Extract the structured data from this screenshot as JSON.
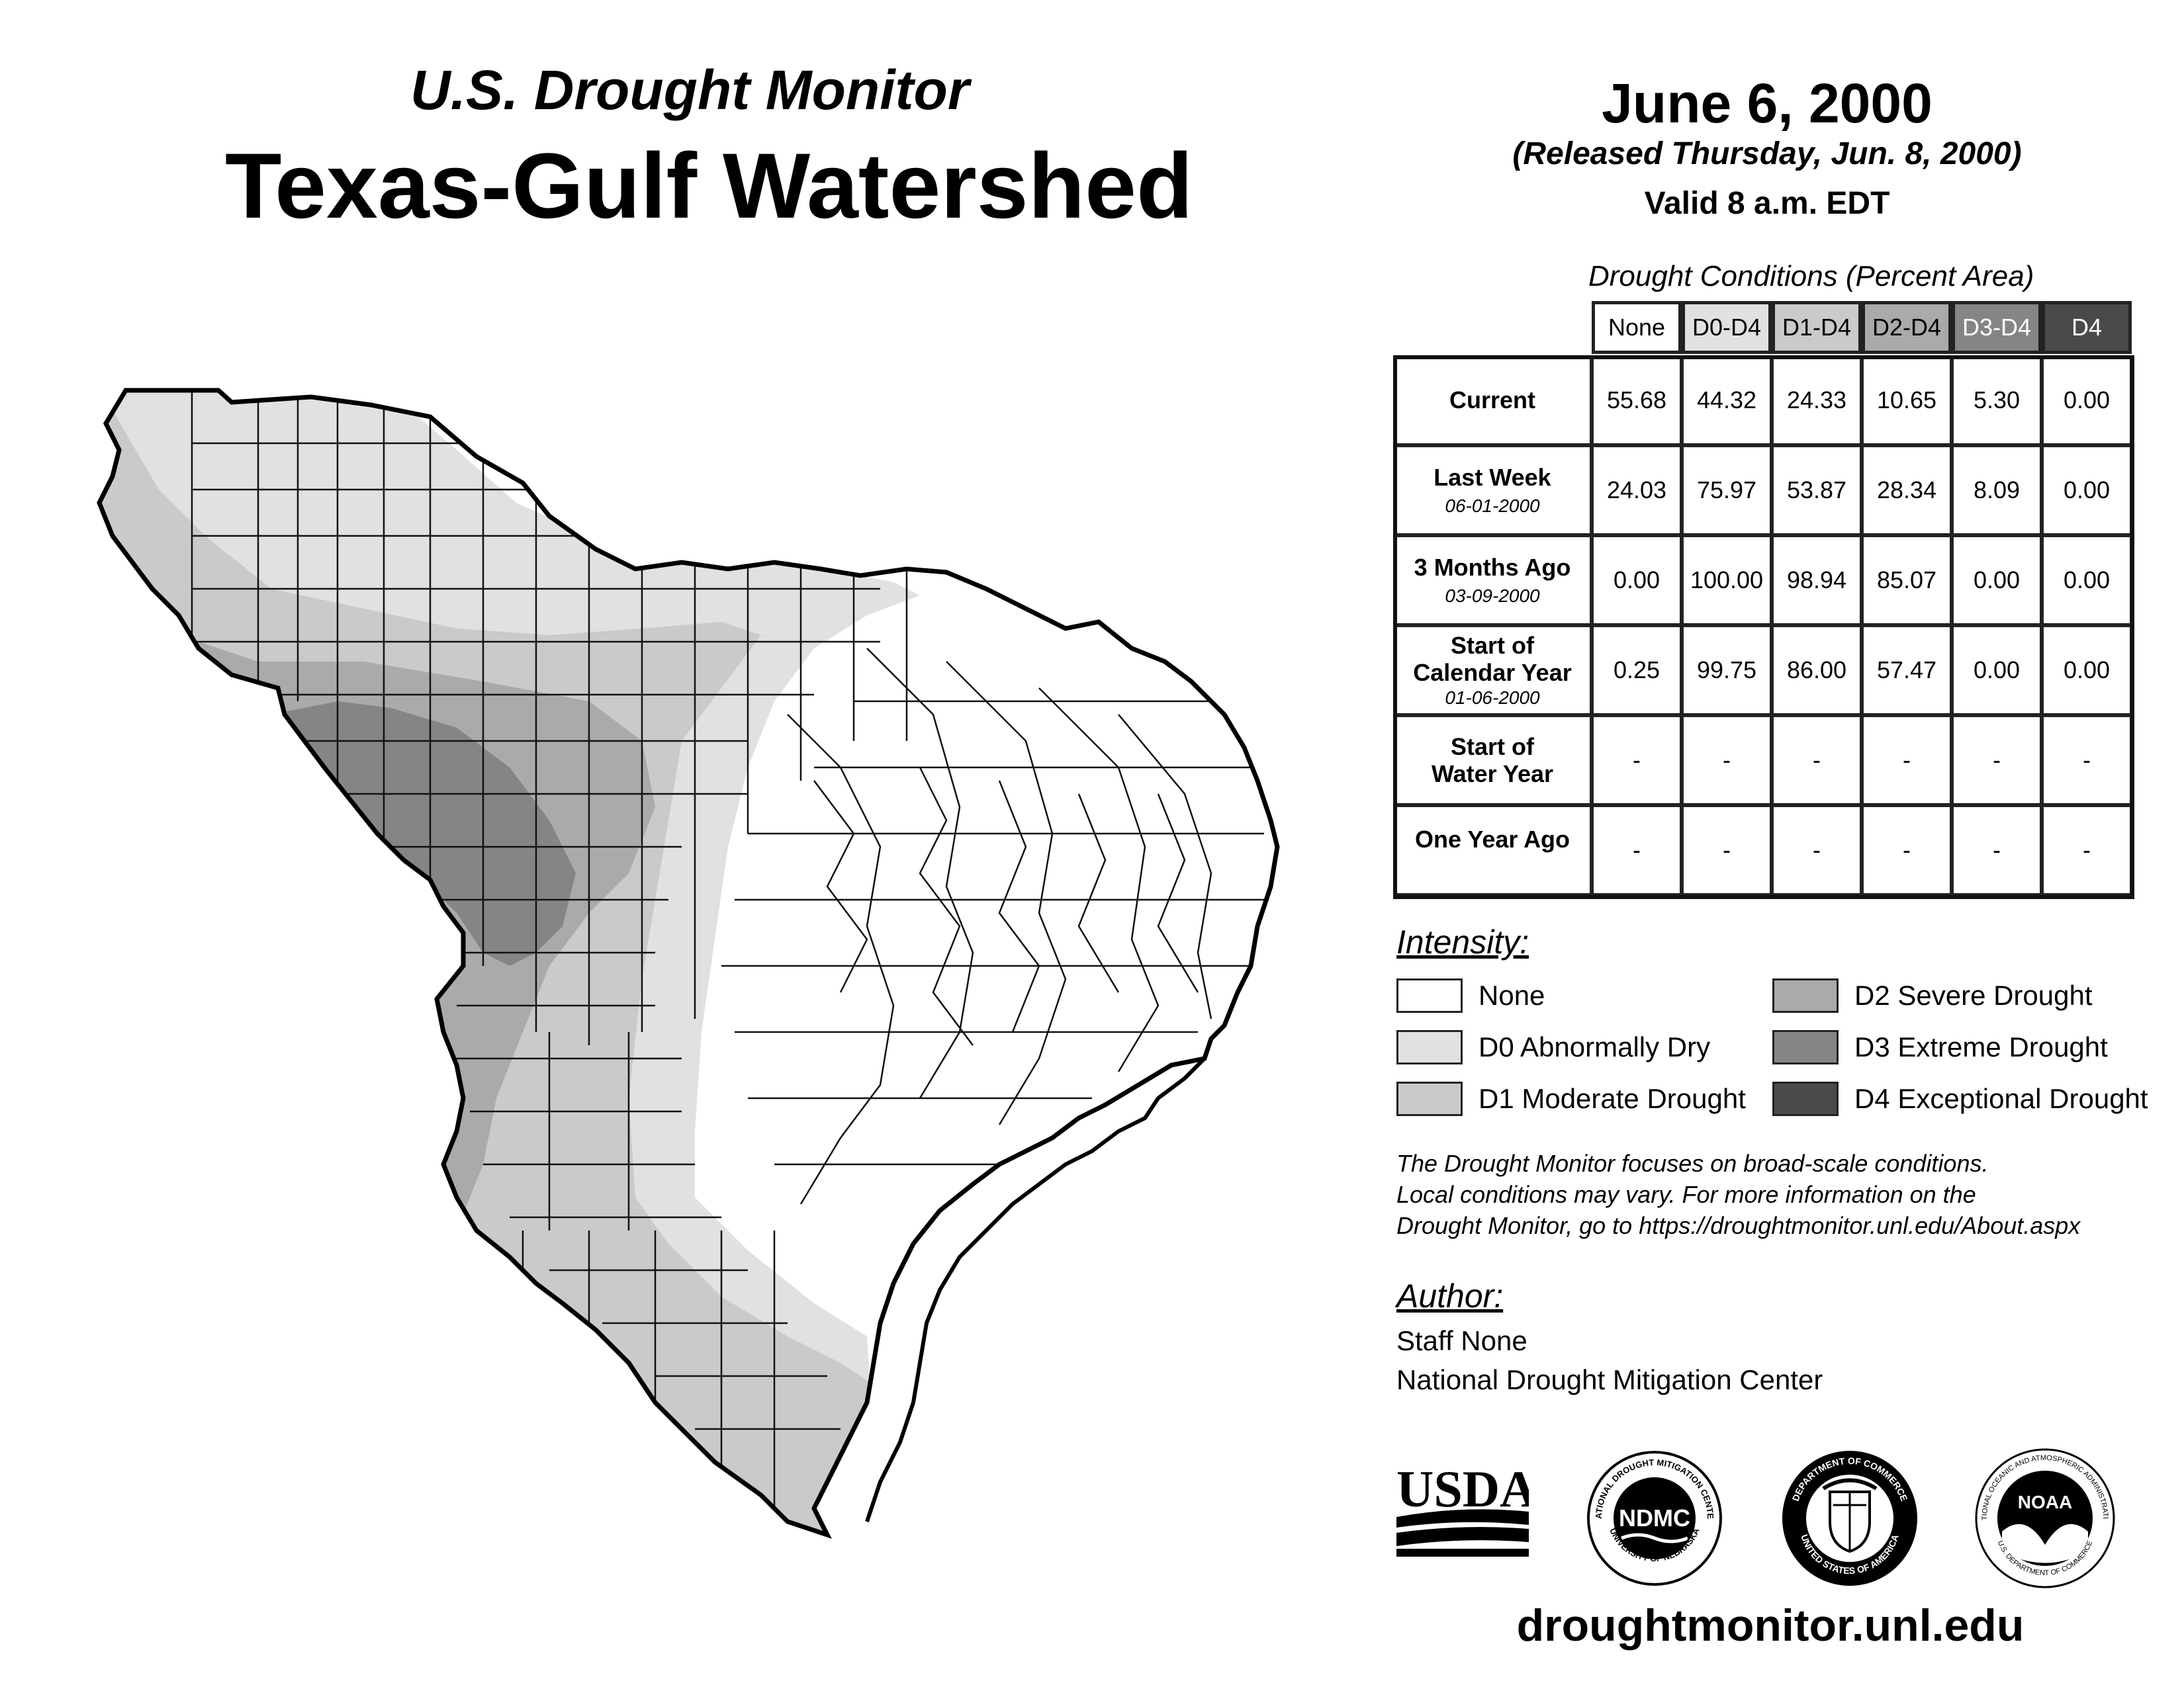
{
  "header": {
    "subtitle": "U.S. Drought Monitor",
    "title": "Texas-Gulf Watershed"
  },
  "date": {
    "title": "June 6, 2000",
    "released": "(Released Thursday, Jun. 8, 2000)",
    "valid": "Valid 8 a.m. EDT"
  },
  "table": {
    "caption": "Drought Conditions (Percent Area)",
    "columns": [
      "None",
      "D0-D4",
      "D1-D4",
      "D2-D4",
      "D3-D4",
      "D4"
    ],
    "rows": [
      {
        "label": "Current",
        "sub": "",
        "values": [
          "55.68",
          "44.32",
          "24.33",
          "10.65",
          "5.30",
          "0.00"
        ]
      },
      {
        "label": "Last Week",
        "sub": "06-01-2000",
        "values": [
          "24.03",
          "75.97",
          "53.87",
          "28.34",
          "8.09",
          "0.00"
        ]
      },
      {
        "label": "3 Months Ago",
        "sub": "03-09-2000",
        "values": [
          "0.00",
          "100.00",
          "98.94",
          "85.07",
          "0.00",
          "0.00"
        ]
      },
      {
        "label": "Start of Calendar Year",
        "sub": "01-06-2000",
        "values": [
          "0.25",
          "99.75",
          "86.00",
          "57.47",
          "0.00",
          "0.00"
        ]
      },
      {
        "label": "Start of Water Year",
        "sub": "",
        "values": [
          "-",
          "-",
          "-",
          "-",
          "-",
          "-"
        ]
      },
      {
        "label": "One Year Ago",
        "sub": "",
        "values": [
          "-",
          "-",
          "-",
          "-",
          "-",
          "-"
        ]
      }
    ]
  },
  "legend": {
    "heading": "Intensity:",
    "items": [
      {
        "label": "None",
        "color": "#ffffff"
      },
      {
        "label": "D0 Abnormally Dry",
        "color": "#e1e1e1"
      },
      {
        "label": "D1 Moderate Drought",
        "color": "#cacaca"
      },
      {
        "label": "D2 Severe Drought",
        "color": "#aaaaaa"
      },
      {
        "label": "D3 Extreme Drought",
        "color": "#858585"
      },
      {
        "label": "D4 Exceptional Drought",
        "color": "#4a4a4a"
      }
    ]
  },
  "disclaimer": {
    "line1": "The Drought Monitor focuses on broad-scale conditions.",
    "line2": "Local conditions may vary. For more information on the",
    "line3": "Drought Monitor, go to https://droughtmonitor.unl.edu/About.aspx"
  },
  "author": {
    "heading": "Author:",
    "name": "Staff None",
    "org": "National Drought Mitigation Center"
  },
  "logos": {
    "usda": "USDA",
    "ndmc": "NDMC",
    "ndmc_top": "NATIONAL DROUGHT MITIGATION CENTER",
    "ndmc_bottom": "UNIVERSITY OF NEBRASKA",
    "doc_top": "DEPARTMENT OF COMMERCE",
    "doc_bottom": "UNITED STATES OF AMERICA",
    "noaa": "NOAA",
    "noaa_ring": "NATIONAL OCEANIC AND ATMOSPHERIC ADMINISTRATION",
    "noaa_bottom": "U.S. DEPARTMENT OF COMMERCE"
  },
  "site_url": "droughtmonitor.unl.edu"
}
